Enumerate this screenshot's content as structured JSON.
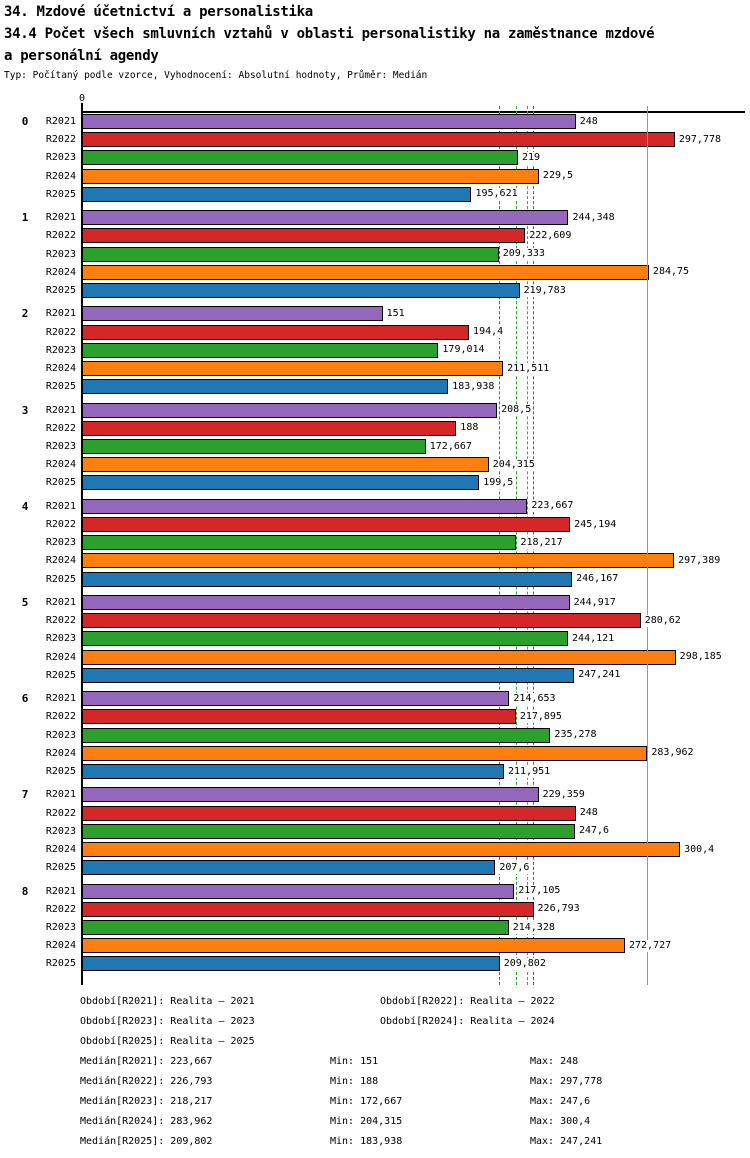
{
  "header": {
    "title_line1": "34. Mzdové účetnictví a personalistika",
    "title_line2": "34.4 Počet všech smluvních vztahů v oblasti personalistiky na zaměstnance mzdové",
    "title_line3": "a personální agendy",
    "subtitle": "Typ: Počítaný podle vzorce, Vyhodnocení: Absolutní hodnoty, Průměr: Medián"
  },
  "chart_data": {
    "type": "bar",
    "orientation": "horizontal",
    "title": "34.4 Počet všech smluvních vztahů v oblasti personalistiky na zaměstnance mzdové a personální agendy",
    "axis_tick_label": "0",
    "xlim": [
      0,
      333
    ],
    "grid": false,
    "categories": [
      "0",
      "1",
      "2",
      "3",
      "4",
      "5",
      "6",
      "7",
      "8"
    ],
    "series": [
      {
        "name": "R2021",
        "color": "#9467bd",
        "median": 223.667,
        "values": [
          248,
          244.348,
          151,
          208.5,
          223.667,
          244.917,
          214.653,
          229.359,
          217.105
        ],
        "labels": [
          "248",
          "244,348",
          "151",
          "208,5",
          "223,667",
          "244,917",
          "214,653",
          "229,359",
          "217,105"
        ]
      },
      {
        "name": "R2022",
        "color": "#d62728",
        "median": 226.793,
        "values": [
          297.778,
          222.609,
          194.4,
          188,
          245.194,
          280.62,
          217.895,
          248,
          226.793
        ],
        "labels": [
          "297,778",
          "222,609",
          "194,4",
          "188",
          "245,194",
          "280,62",
          "217,895",
          "248",
          "226,793"
        ]
      },
      {
        "name": "R2023",
        "color": "#2ca02c",
        "median": 218.217,
        "values": [
          219,
          209.333,
          179.014,
          172.667,
          218.217,
          244.121,
          235.278,
          247.6,
          214.328
        ],
        "labels": [
          "219",
          "209,333",
          "179,014",
          "172,667",
          "218,217",
          "244,121",
          "235,278",
          "247,6",
          "214,328"
        ]
      },
      {
        "name": "R2024",
        "color": "#ff7f0e",
        "median": 283.962,
        "values": [
          229.5,
          284.75,
          211.511,
          204.315,
          297.389,
          298.185,
          283.962,
          300.4,
          272.727
        ],
        "labels": [
          "229,5",
          "284,75",
          "211,511",
          "204,315",
          "297,389",
          "298,185",
          "283,962",
          "300,4",
          "272,727"
        ]
      },
      {
        "name": "R2025",
        "color": "#1f77b4",
        "median": 209.802,
        "values": [
          195.621,
          219.783,
          183.938,
          199.5,
          246.167,
          247.241,
          211.951,
          207.6,
          209.802
        ],
        "labels": [
          "195,621",
          "219,783",
          "183,938",
          "199,5",
          "246,167",
          "247,241",
          "211,951",
          "207,6",
          "209,802"
        ]
      }
    ],
    "legend": [
      {
        "label": "Období[R2021]:",
        "value": "Realita – 2021"
      },
      {
        "label": "Období[R2022]:",
        "value": "Realita – 2022"
      },
      {
        "label": "Období[R2023]:",
        "value": "Realita – 2023"
      },
      {
        "label": "Období[R2024]:",
        "value": "Realita – 2024"
      },
      {
        "label": "Období[R2025]:",
        "value": "Realita – 2025"
      }
    ],
    "stats": [
      {
        "median_label": "Medián[R2021]:",
        "median": "223,667",
        "min_label": "Min:",
        "min": "151",
        "max_label": "Max:",
        "max": "248"
      },
      {
        "median_label": "Medián[R2022]:",
        "median": "226,793",
        "min_label": "Min:",
        "min": "188",
        "max_label": "Max:",
        "max": "297,778"
      },
      {
        "median_label": "Medián[R2023]:",
        "median": "218,217",
        "min_label": "Min:",
        "min": "172,667",
        "max_label": "Max:",
        "max": "247,6"
      },
      {
        "median_label": "Medián[R2024]:",
        "median": "283,962",
        "min_label": "Min:",
        "min": "204,315",
        "max_label": "Max:",
        "max": "300,4"
      },
      {
        "median_label": "Medián[R2025]:",
        "median": "209,802",
        "min_label": "Min:",
        "min": "183,938",
        "max_label": "Max:",
        "max": "247,241"
      }
    ]
  }
}
